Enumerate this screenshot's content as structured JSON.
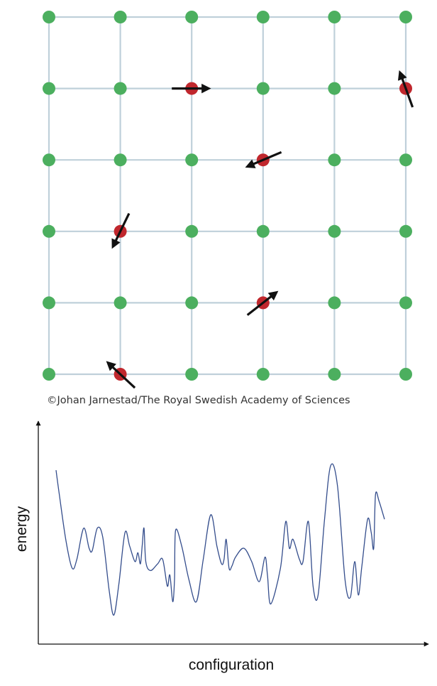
{
  "lattice": {
    "columns": 6,
    "rows": 6,
    "colors": {
      "link": "#bfd0da",
      "site": "#4caf5f",
      "defect": "#c0272d",
      "arrow": "#111111"
    },
    "defects": [
      {
        "col": 2,
        "row": 1,
        "arrow_direction_deg": 0
      },
      {
        "col": 5,
        "row": 1,
        "arrow_direction_deg": -110
      },
      {
        "col": 3,
        "row": 2,
        "arrow_direction_deg": 157
      },
      {
        "col": 1,
        "row": 3,
        "arrow_direction_deg": 116
      },
      {
        "col": 3,
        "row": 4,
        "arrow_direction_deg": -38
      },
      {
        "col": 1,
        "row": 5,
        "arrow_direction_deg": -137
      }
    ]
  },
  "credit": "©Johan Jarnestad/The Royal Swedish Academy of Sciences",
  "energy_plot": {
    "xlabel": "configuration",
    "ylabel": "energy",
    "line_color": "#344d8c",
    "curve": [
      [
        0.0,
        0.78
      ],
      [
        0.01,
        0.66
      ],
      [
        0.028,
        0.46
      ],
      [
        0.045,
        0.34
      ],
      [
        0.058,
        0.38
      ],
      [
        0.077,
        0.52
      ],
      [
        0.092,
        0.43
      ],
      [
        0.101,
        0.42
      ],
      [
        0.115,
        0.52
      ],
      [
        0.13,
        0.48
      ],
      [
        0.148,
        0.24
      ],
      [
        0.161,
        0.13
      ],
      [
        0.175,
        0.27
      ],
      [
        0.192,
        0.5
      ],
      [
        0.205,
        0.44
      ],
      [
        0.22,
        0.37
      ],
      [
        0.228,
        0.41
      ],
      [
        0.235,
        0.36
      ],
      [
        0.24,
        0.44
      ],
      [
        0.245,
        0.52
      ],
      [
        0.25,
        0.37
      ],
      [
        0.263,
        0.33
      ],
      [
        0.283,
        0.36
      ],
      [
        0.297,
        0.38
      ],
      [
        0.31,
        0.26
      ],
      [
        0.317,
        0.31
      ],
      [
        0.325,
        0.19
      ],
      [
        0.33,
        0.29
      ],
      [
        0.333,
        0.51
      ],
      [
        0.35,
        0.44
      ],
      [
        0.37,
        0.29
      ],
      [
        0.391,
        0.19
      ],
      [
        0.41,
        0.38
      ],
      [
        0.431,
        0.58
      ],
      [
        0.448,
        0.44
      ],
      [
        0.461,
        0.36
      ],
      [
        0.468,
        0.38
      ],
      [
        0.474,
        0.47
      ],
      [
        0.482,
        0.34
      ],
      [
        0.49,
        0.35
      ],
      [
        0.5,
        0.39
      ],
      [
        0.523,
        0.43
      ],
      [
        0.545,
        0.37
      ],
      [
        0.566,
        0.28
      ],
      [
        0.582,
        0.39
      ],
      [
        0.589,
        0.31
      ],
      [
        0.598,
        0.18
      ],
      [
        0.625,
        0.34
      ],
      [
        0.64,
        0.55
      ],
      [
        0.65,
        0.43
      ],
      [
        0.66,
        0.47
      ],
      [
        0.678,
        0.38
      ],
      [
        0.688,
        0.37
      ],
      [
        0.703,
        0.55
      ],
      [
        0.716,
        0.26
      ],
      [
        0.73,
        0.22
      ],
      [
        0.748,
        0.56
      ],
      [
        0.765,
        0.8
      ],
      [
        0.784,
        0.71
      ],
      [
        0.805,
        0.29
      ],
      [
        0.82,
        0.21
      ],
      [
        0.832,
        0.37
      ],
      [
        0.842,
        0.22
      ],
      [
        0.852,
        0.35
      ],
      [
        0.868,
        0.56
      ],
      [
        0.878,
        0.5
      ],
      [
        0.885,
        0.43
      ],
      [
        0.89,
        0.67
      ],
      [
        0.9,
        0.64
      ],
      [
        0.915,
        0.56
      ]
    ]
  }
}
